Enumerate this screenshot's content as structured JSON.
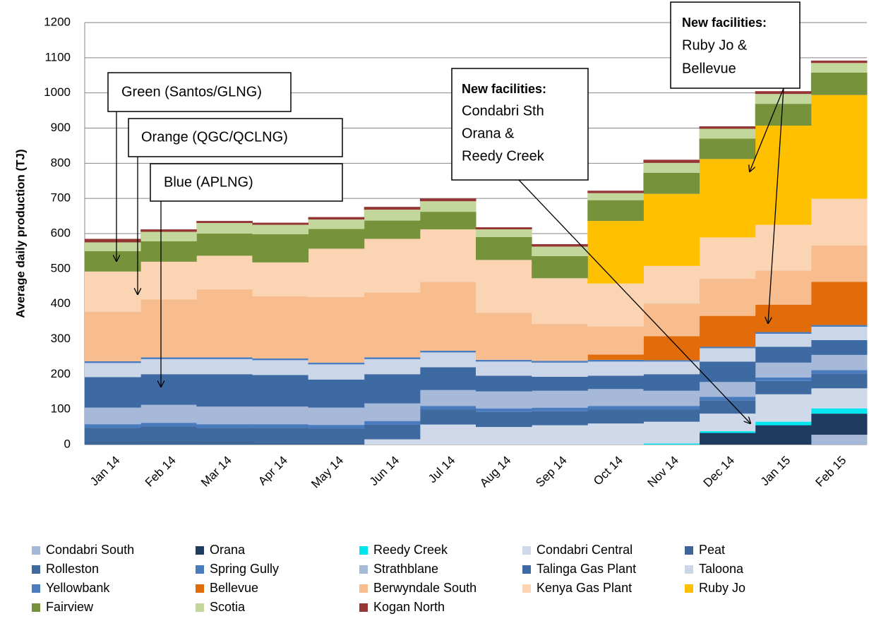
{
  "chart_data": {
    "type": "stacked_area_step",
    "y_label": "Average daily production (TJ)",
    "categories": [
      "Jan 14",
      "Feb 14",
      "Mar 14",
      "Apr 14",
      "May 14",
      "Jun 14",
      "Jul 14",
      "Aug 14",
      "Sep 14",
      "Oct 14",
      "Nov 14",
      "Dec 14",
      "Jan 15",
      "Feb 15"
    ],
    "ylim": [
      0,
      1200
    ],
    "yticks": [
      0,
      100,
      200,
      300,
      400,
      500,
      600,
      700,
      800,
      900,
      1000,
      1100,
      1200
    ],
    "grid": true,
    "legend": "bottom",
    "series": [
      {
        "name": "Condabri South",
        "color": "#a5b8d8",
        "values": [
          0,
          0,
          0,
          0,
          0,
          0,
          0,
          0,
          0,
          0,
          0,
          0,
          0,
          28
        ]
      },
      {
        "name": "Orana",
        "color": "#1f3a5f",
        "values": [
          0,
          0,
          0,
          0,
          0,
          0,
          0,
          0,
          0,
          0,
          0,
          33,
          55,
          60
        ]
      },
      {
        "name": "Reedy Creek",
        "color": "#00e5ee",
        "values": [
          0,
          0,
          0,
          0,
          0,
          0,
          0,
          0,
          0,
          0,
          3,
          5,
          10,
          15
        ]
      },
      {
        "name": "Condabri Central",
        "color": "#d0d9ea",
        "values": [
          0,
          0,
          0,
          0,
          0,
          15,
          57,
          50,
          55,
          60,
          62,
          50,
          78,
          57
        ]
      },
      {
        "name": "Peat",
        "color": "#3d6496",
        "values": [
          8,
          10,
          8,
          5,
          5,
          0,
          0,
          0,
          0,
          0,
          0,
          0,
          0,
          0
        ]
      },
      {
        "name": "Rolleston",
        "color": "#3f6aa0",
        "values": [
          40,
          42,
          40,
          43,
          41,
          42,
          43,
          43,
          40,
          40,
          35,
          38,
          38,
          42
        ]
      },
      {
        "name": "Spring Gully",
        "color": "#4a7bbf",
        "values": [
          10,
          10,
          10,
          10,
          10,
          10,
          10,
          10,
          10,
          10,
          10,
          10,
          10,
          10
        ]
      },
      {
        "name": "Strathblane",
        "color": "#a7b9d9",
        "values": [
          47,
          51,
          50,
          50,
          49,
          50,
          45,
          48,
          48,
          48,
          43,
          42,
          42,
          43
        ]
      },
      {
        "name": "Talinga Gas Plant",
        "color": "#3e6aa4",
        "values": [
          87,
          87,
          92,
          90,
          80,
          83,
          65,
          45,
          40,
          38,
          47,
          58,
          45,
          42
        ]
      },
      {
        "name": "Taloona",
        "color": "#cbd6e8",
        "values": [
          40,
          43,
          43,
          42,
          43,
          43,
          42,
          40,
          40,
          40,
          36,
          38,
          37,
          38
        ]
      },
      {
        "name": "Yellowbank",
        "color": "#4a7cc0",
        "values": [
          5,
          5,
          5,
          5,
          5,
          5,
          5,
          5,
          5,
          5,
          4,
          4,
          5,
          5
        ]
      },
      {
        "name": "Bellevue",
        "color": "#e36c0a",
        "values": [
          0,
          0,
          0,
          0,
          0,
          0,
          0,
          0,
          0,
          15,
          68,
          88,
          78,
          123
        ]
      },
      {
        "name": "Berwyndale South",
        "color": "#f7bd8e",
        "values": [
          141,
          165,
          194,
          177,
          187,
          185,
          196,
          134,
          105,
          80,
          92,
          106,
          97,
          103
        ]
      },
      {
        "name": "Kenya Gas Plant",
        "color": "#fbd4b4",
        "values": [
          114,
          107,
          95,
          96,
          137,
          152,
          149,
          150,
          130,
          122,
          108,
          117,
          130,
          133
        ]
      },
      {
        "name": "Ruby Jo",
        "color": "#ffc000",
        "values": [
          0,
          0,
          0,
          0,
          0,
          0,
          0,
          0,
          0,
          178,
          205,
          223,
          282,
          295
        ]
      },
      {
        "name": "Fairview",
        "color": "#76933c",
        "values": [
          58,
          58,
          63,
          80,
          56,
          52,
          50,
          65,
          63,
          59,
          60,
          58,
          62,
          64
        ]
      },
      {
        "name": "Scotia",
        "color": "#c3d69b",
        "values": [
          25,
          27,
          30,
          27,
          27,
          31,
          30,
          22,
          27,
          20,
          28,
          28,
          28,
          27
        ]
      },
      {
        "name": "Kogan North",
        "color": "#953735",
        "values": [
          10,
          7,
          6,
          6,
          7,
          8,
          8,
          6,
          7,
          7,
          9,
          7,
          8,
          7
        ]
      }
    ],
    "annotations": [
      {
        "lines": [
          "Green (Santos/GLNG)"
        ]
      },
      {
        "lines": [
          "Orange (QGC/QCLNG)"
        ]
      },
      {
        "lines": [
          "Blue (APLNG)"
        ]
      },
      {
        "heading": "New facilities:",
        "lines": [
          "Condabri Sth",
          "Orana &",
          "Reedy Creek"
        ]
      },
      {
        "heading": "New facilities:",
        "lines": [
          "Ruby Jo &",
          "Bellevue"
        ]
      }
    ]
  }
}
